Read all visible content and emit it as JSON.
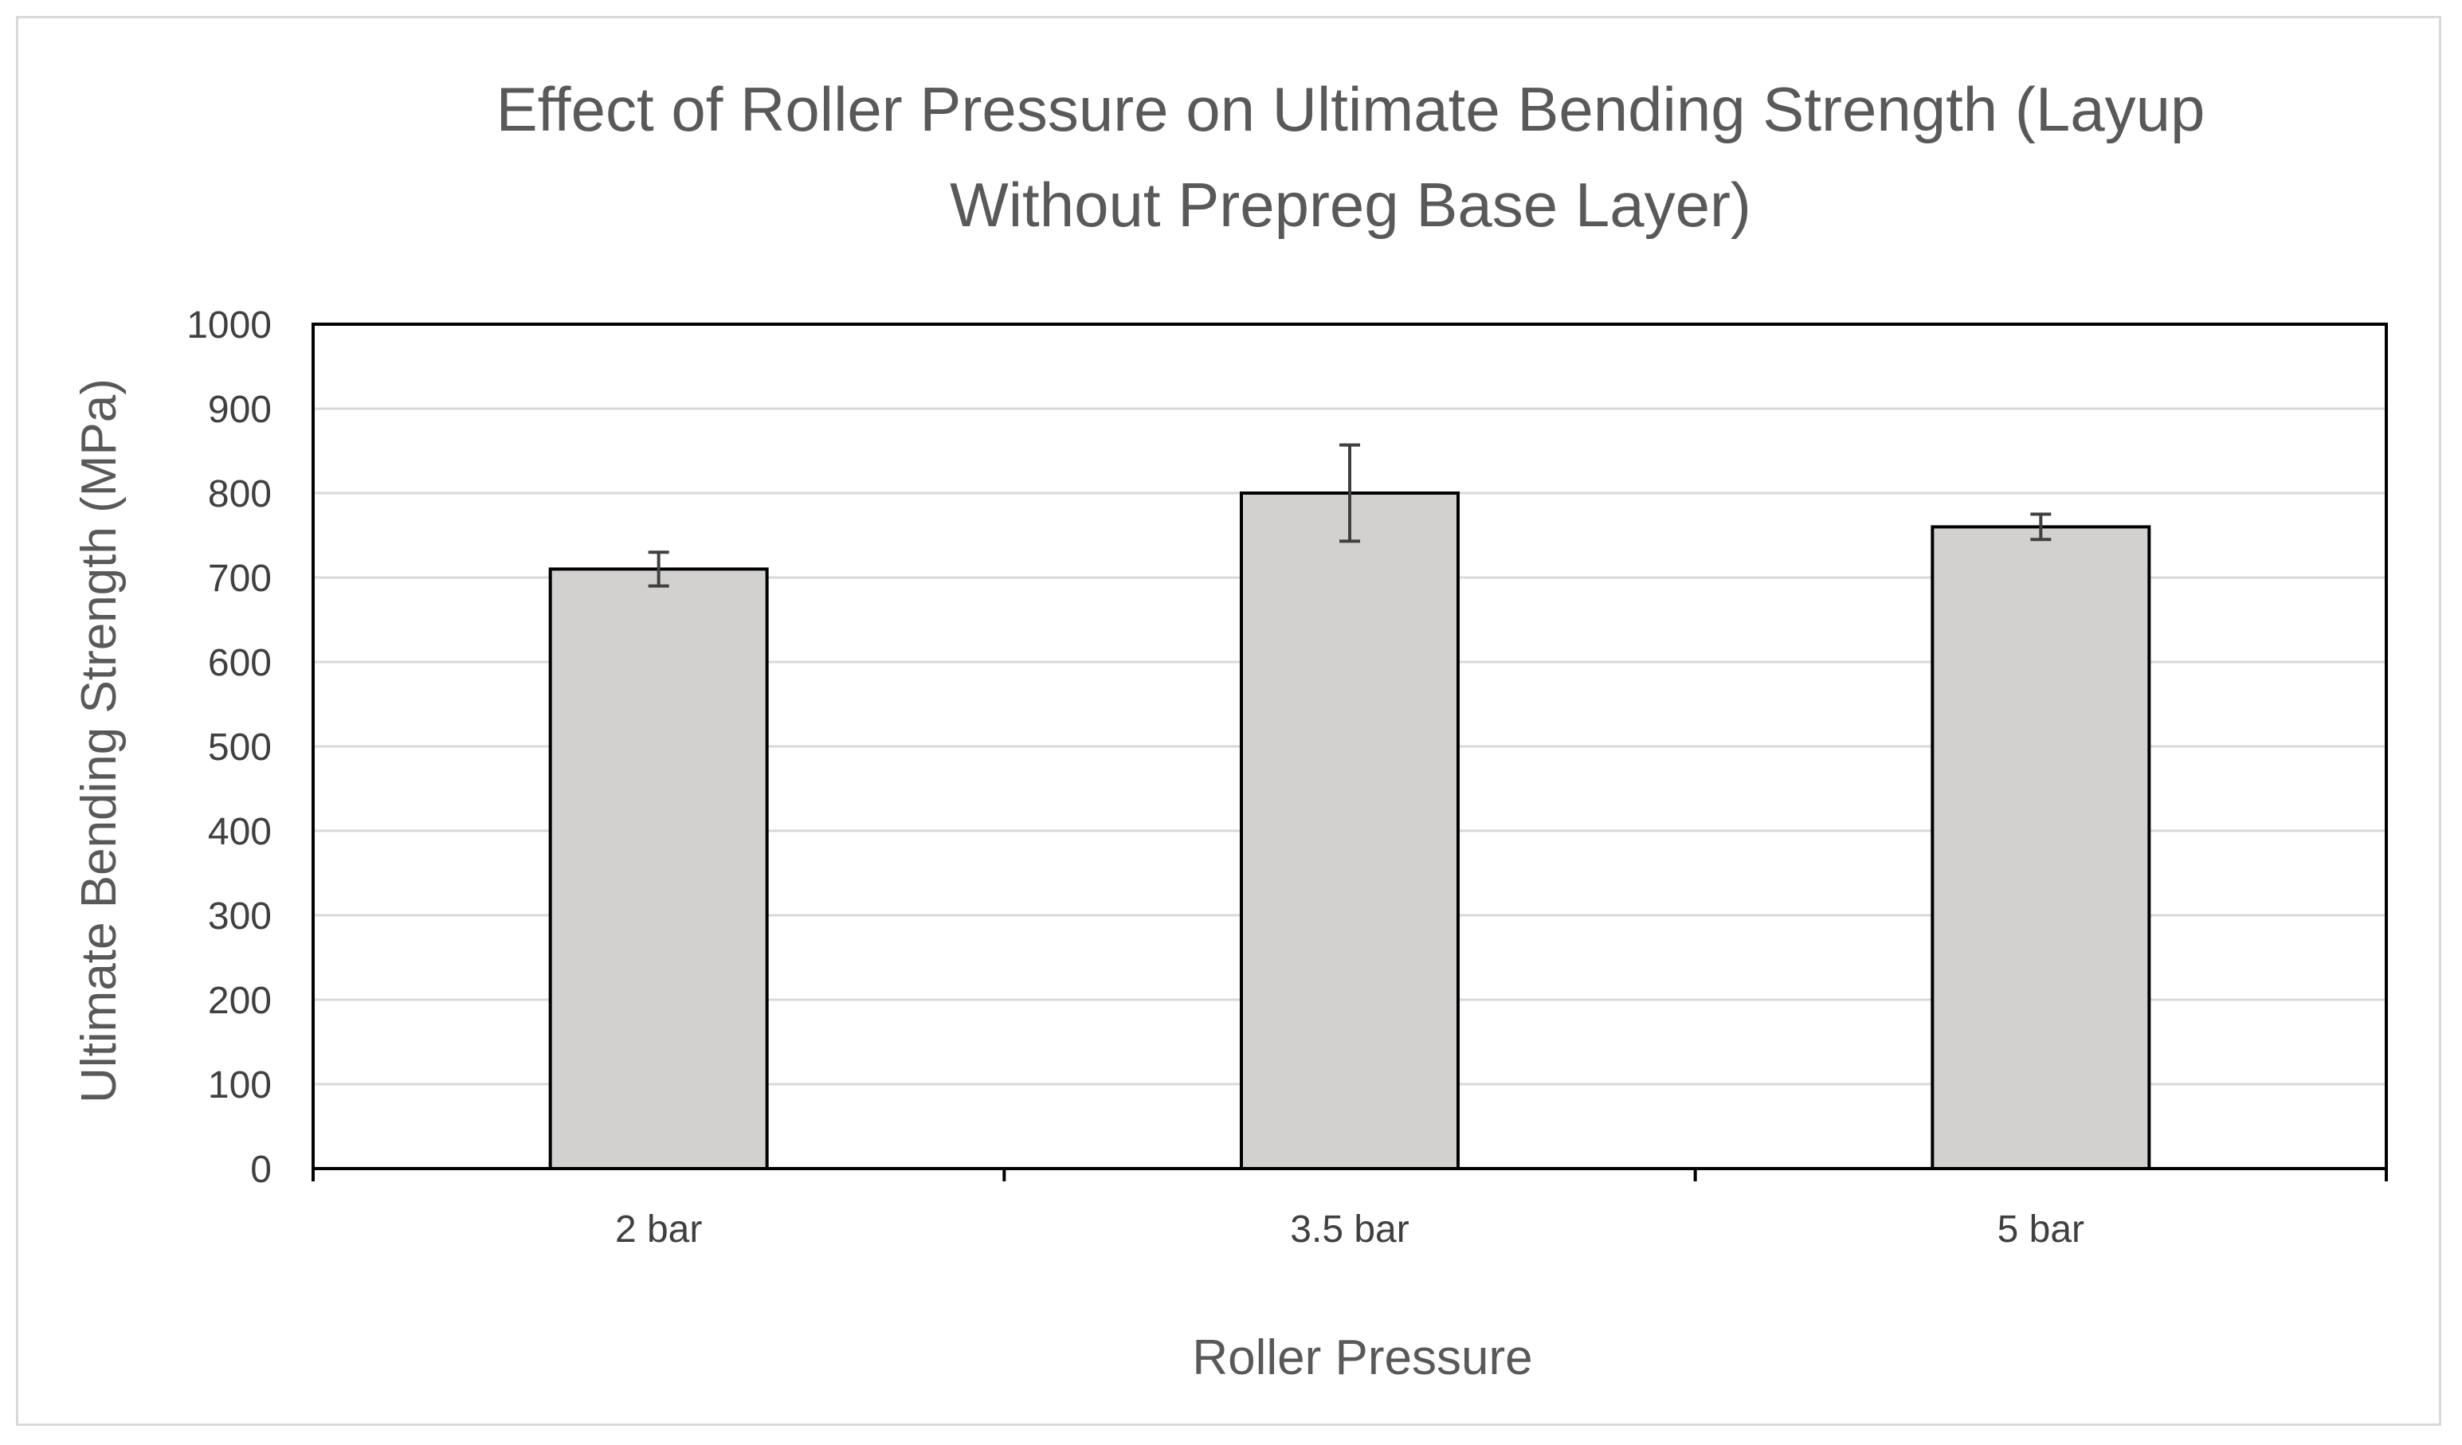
{
  "chart_data": {
    "type": "bar",
    "title_lines": [
      "Effect of Roller Pressure on Ultimate Bending Strength (Layup",
      "Without Prepreg Base Layer)"
    ],
    "xlabel": "Roller Pressure",
    "ylabel": "Ultimate Bending Strength (MPa)",
    "categories": [
      "2 bar",
      "3.5 bar",
      "5 bar"
    ],
    "values": [
      710,
      800,
      760
    ],
    "error_bars": [
      20,
      57,
      15
    ],
    "ylim": [
      0,
      1000
    ],
    "yticks": [
      "0",
      "100",
      "200",
      "300",
      "400",
      "500",
      "600",
      "700",
      "800",
      "900",
      "1000"
    ],
    "grid": true,
    "legend": "none",
    "colors": {
      "bar_fill": "#d3d0d0",
      "bar_stroke": "#000000",
      "grid": "#d9d9d9",
      "error_bar": "#404040",
      "plot_border": "#000000"
    }
  }
}
